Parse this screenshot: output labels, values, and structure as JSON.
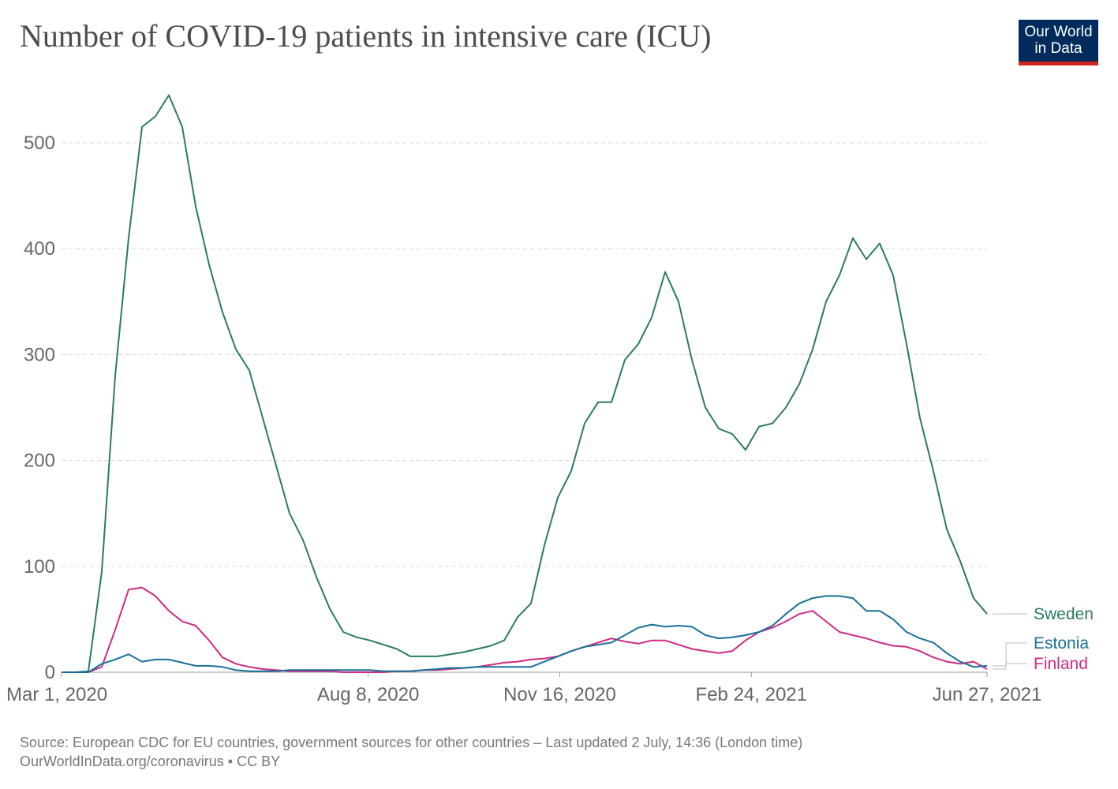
{
  "header": {
    "title": "Number of COVID-19 patients in intensive care (ICU)",
    "logo_line1": "Our World",
    "logo_line2": "in Data"
  },
  "footer": {
    "source": "Source: European CDC for EU countries, government sources for other countries – Last updated 2 July, 14:36 (London time)",
    "license": "OurWorldInData.org/coronavirus • CC BY"
  },
  "chart_data": {
    "type": "line",
    "title": "Number of COVID-19 patients in intensive care (ICU)",
    "xlabel": "",
    "ylabel": "",
    "xlim": [
      "2020-03-01",
      "2021-06-27"
    ],
    "ylim": [
      0,
      550
    ],
    "grid": "horizontal dashed",
    "legend": "right, end-of-line labels",
    "y_ticks": [
      0,
      100,
      200,
      300,
      400,
      500
    ],
    "x_ticks": [
      {
        "date": "2020-03-01",
        "label": "Mar 1, 2020"
      },
      {
        "date": "2020-08-08",
        "label": "Aug 8, 2020"
      },
      {
        "date": "2020-11-16",
        "label": "Nov 16, 2020"
      },
      {
        "date": "2021-02-24",
        "label": "Feb 24, 2021"
      },
      {
        "date": "2021-06-27",
        "label": "Jun 27, 2021"
      }
    ],
    "x": [
      "2020-03-01",
      "2020-03-08",
      "2020-03-15",
      "2020-03-22",
      "2020-03-29",
      "2020-04-05",
      "2020-04-12",
      "2020-04-19",
      "2020-04-26",
      "2020-05-03",
      "2020-05-10",
      "2020-05-17",
      "2020-05-24",
      "2020-05-31",
      "2020-06-07",
      "2020-06-14",
      "2020-06-21",
      "2020-06-28",
      "2020-07-05",
      "2020-07-12",
      "2020-07-19",
      "2020-07-26",
      "2020-08-02",
      "2020-08-09",
      "2020-08-16",
      "2020-08-23",
      "2020-08-30",
      "2020-09-06",
      "2020-09-13",
      "2020-09-20",
      "2020-09-27",
      "2020-10-04",
      "2020-10-11",
      "2020-10-18",
      "2020-10-25",
      "2020-11-01",
      "2020-11-08",
      "2020-11-15",
      "2020-11-22",
      "2020-11-29",
      "2020-12-06",
      "2020-12-13",
      "2020-12-20",
      "2020-12-27",
      "2021-01-03",
      "2021-01-10",
      "2021-01-17",
      "2021-01-24",
      "2021-01-31",
      "2021-02-07",
      "2021-02-14",
      "2021-02-21",
      "2021-02-28",
      "2021-03-07",
      "2021-03-14",
      "2021-03-21",
      "2021-03-28",
      "2021-04-04",
      "2021-04-11",
      "2021-04-18",
      "2021-04-25",
      "2021-05-02",
      "2021-05-09",
      "2021-05-16",
      "2021-05-23",
      "2021-05-30",
      "2021-06-06",
      "2021-06-13",
      "2021-06-20",
      "2021-06-27"
    ],
    "series": [
      {
        "name": "Sweden",
        "color": "#2b7a66",
        "values": [
          0,
          0,
          1,
          95,
          280,
          410,
          515,
          525,
          545,
          515,
          440,
          385,
          340,
          305,
          285,
          240,
          195,
          150,
          125,
          90,
          60,
          38,
          33,
          30,
          26,
          22,
          15,
          15,
          15,
          17,
          19,
          22,
          25,
          30,
          52,
          65,
          120,
          165,
          190,
          235,
          255,
          255,
          295,
          310,
          335,
          378,
          350,
          295,
          250,
          230,
          225,
          210,
          232,
          235,
          250,
          272,
          305,
          350,
          375,
          410,
          390,
          405,
          375,
          310,
          240,
          190,
          135,
          105,
          70,
          55
        ]
      },
      {
        "name": "Estonia",
        "color": "#18709a",
        "values": [
          0,
          0,
          0,
          8,
          12,
          17,
          10,
          12,
          12,
          9,
          6,
          6,
          5,
          2,
          1,
          1,
          1,
          2,
          2,
          2,
          2,
          2,
          2,
          2,
          1,
          1,
          1,
          2,
          3,
          4,
          4,
          5,
          5,
          5,
          5,
          5,
          10,
          15,
          20,
          24,
          26,
          28,
          35,
          42,
          45,
          43,
          44,
          43,
          35,
          32,
          33,
          35,
          38,
          44,
          55,
          65,
          70,
          72,
          72,
          70,
          58,
          58,
          50,
          38,
          32,
          28,
          18,
          10,
          5,
          6
        ]
      },
      {
        "name": "Finland",
        "color": "#d02a85",
        "values": [
          0,
          0,
          0,
          5,
          40,
          78,
          80,
          72,
          58,
          48,
          44,
          30,
          14,
          8,
          5,
          3,
          2,
          1,
          1,
          1,
          1,
          0,
          0,
          0,
          0,
          1,
          1,
          2,
          2,
          3,
          4,
          5,
          7,
          9,
          10,
          12,
          13,
          15,
          20,
          24,
          28,
          32,
          29,
          27,
          30,
          30,
          26,
          22,
          20,
          18,
          20,
          30,
          38,
          42,
          48,
          55,
          58,
          48,
          38,
          35,
          32,
          28,
          25,
          24,
          20,
          14,
          10,
          8,
          10,
          3
        ]
      }
    ]
  }
}
